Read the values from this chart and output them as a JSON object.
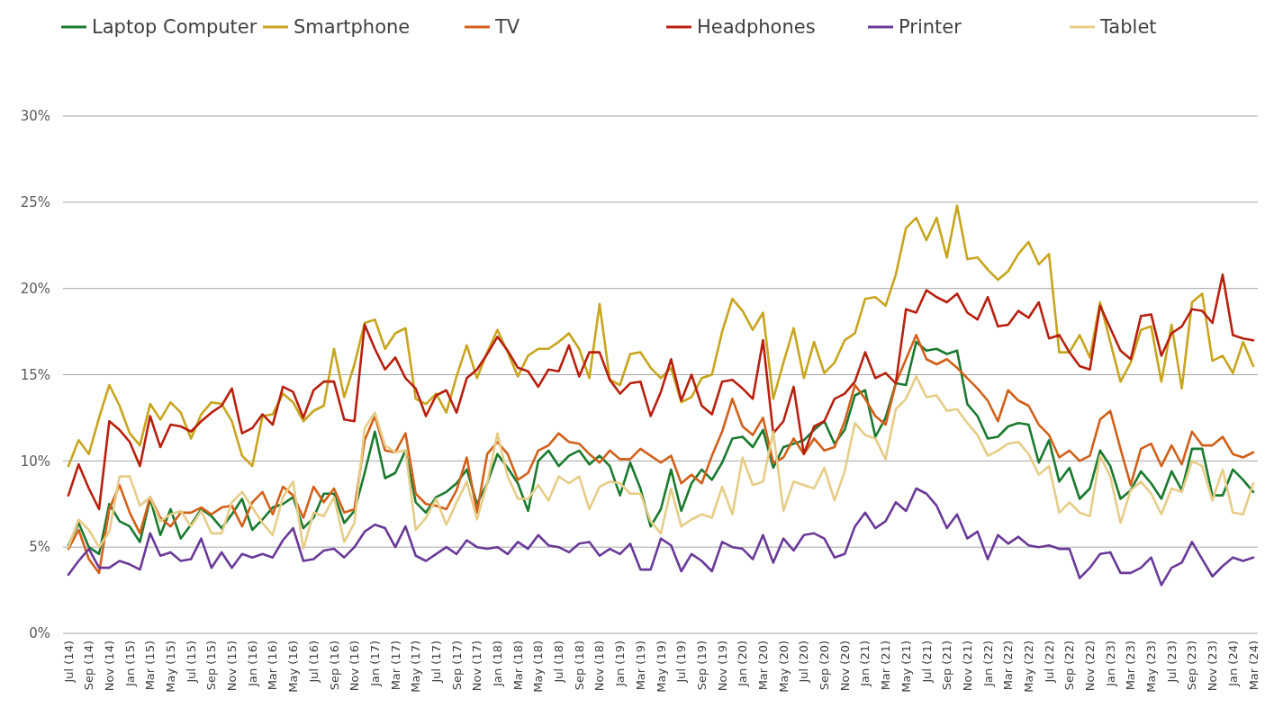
{
  "chart_data": {
    "type": "line",
    "categories": [
      "Jul (14)",
      null,
      "Sep (14)",
      null,
      "Nov (14)",
      null,
      "Jan (15)",
      null,
      "Mar (15)",
      null,
      "May (15)",
      null,
      "Jul (15)",
      null,
      "Sep (15)",
      null,
      "Nov (15)",
      null,
      "Jan (16)",
      null,
      "Mar (16)",
      null,
      "May (16)",
      null,
      "Jul (16)",
      null,
      "Sep (16)",
      null,
      "Nov (16)",
      null,
      "Jan (17)",
      null,
      "Mar (17)",
      null,
      "May (17)",
      null,
      "Jul (17)",
      null,
      "Sep (17)",
      null,
      "Nov (17)",
      null,
      "Jan (18)",
      null,
      "Mar (18)",
      null,
      "May (18)",
      null,
      "Jul (18)",
      null,
      "Sep (18)",
      null,
      "Nov (18)",
      null,
      "Jan (19)",
      null,
      "Mar (19)",
      null,
      "May (19)",
      null,
      "Jul (19)",
      null,
      "Sep (19)",
      null,
      "Nov (19)",
      null,
      "Jan (20)",
      null,
      "Mar (20)",
      null,
      "May (20)",
      null,
      "Jul (20)",
      null,
      "Sep (20)",
      null,
      "Nov (20)",
      null,
      "Jan (21)",
      null,
      "Mar (21)",
      null,
      "May (21)",
      null,
      "Jul (21)",
      null,
      "Sep (21)",
      null,
      "Nov (21)",
      null,
      "Jan (22)",
      null,
      "Mar (22)",
      null,
      "May (22)",
      null,
      "Jul (22)",
      null,
      "Sep (22)",
      null,
      "Nov (22)",
      null,
      "Jan (23)",
      null,
      "Mar (23)",
      null,
      "May (23)",
      null,
      "Jul (23)",
      null,
      "Sep (23)",
      null,
      "Nov (23)",
      null,
      "Jan (24)",
      null,
      "Mar (24)"
    ],
    "ylim": [
      0,
      30
    ],
    "yticks": [
      {
        "value": 0,
        "label": "0%"
      },
      {
        "value": 5,
        "label": "5%"
      },
      {
        "value": 10,
        "label": "10%"
      },
      {
        "value": 15,
        "label": "15%"
      },
      {
        "value": 20,
        "label": "20%"
      },
      {
        "value": 25,
        "label": "25%"
      },
      {
        "value": 30,
        "label": "30%"
      }
    ],
    "grid": "y",
    "legend": "top",
    "line_style": "solid",
    "series": [
      {
        "name": "Laptop Computer",
        "color": "#1a7a2e",
        "values": [
          5.1,
          6.4,
          5.0,
          4.6,
          7.5,
          6.5,
          6.2,
          5.3,
          7.8,
          5.7,
          7.2,
          5.5,
          6.3,
          7.2,
          6.8,
          6.1,
          6.9,
          7.8,
          6.0,
          6.6,
          7.3,
          7.5,
          7.9,
          6.1,
          6.7,
          8.1,
          8.1,
          6.4,
          7.1,
          9.3,
          11.7,
          9.0,
          9.3,
          10.6,
          7.6,
          7.0,
          7.9,
          8.2,
          8.7,
          9.5,
          7.5,
          8.7,
          10.4,
          9.6,
          8.7,
          7.1,
          10.0,
          10.6,
          9.7,
          10.3,
          10.6,
          9.8,
          10.3,
          9.7,
          8.0,
          9.9,
          8.4,
          6.2,
          7.2,
          9.5,
          7.1,
          8.7,
          9.5,
          8.9,
          9.9,
          11.3,
          11.4,
          10.8,
          11.8,
          9.6,
          10.8,
          11.0,
          11.2,
          11.8,
          12.3,
          11.0,
          11.8,
          13.8,
          14.1,
          11.4,
          12.5,
          14.5,
          14.4,
          16.9,
          16.4,
          16.5,
          16.2,
          16.4,
          13.3,
          12.6,
          11.3,
          11.4,
          12.0,
          12.2,
          12.1,
          9.9,
          11.2,
          8.8,
          9.6,
          7.8,
          8.4,
          10.6,
          9.7,
          7.8,
          8.3,
          9.4,
          8.7,
          7.8,
          9.4,
          8.3,
          10.7,
          10.7,
          8.0,
          8.0,
          9.5,
          8.9,
          8.2
        ]
      },
      {
        "name": "Smartphone",
        "color": "#c8a51e",
        "values": [
          9.7,
          11.2,
          10.4,
          12.5,
          14.4,
          13.2,
          11.6,
          10.9,
          13.3,
          12.4,
          13.4,
          12.8,
          11.3,
          12.7,
          13.4,
          13.3,
          12.3,
          10.3,
          9.7,
          12.6,
          12.7,
          13.9,
          13.4,
          12.3,
          12.9,
          13.2,
          16.5,
          13.7,
          15.6,
          18.0,
          18.2,
          16.5,
          17.4,
          17.7,
          13.6,
          13.3,
          13.9,
          12.8,
          14.9,
          16.7,
          14.8,
          16.3,
          17.6,
          16.3,
          14.9,
          16.1,
          16.5,
          16.5,
          16.9,
          17.4,
          16.5,
          14.8,
          19.1,
          14.7,
          14.4,
          16.2,
          16.3,
          15.4,
          14.8,
          15.4,
          13.4,
          13.7,
          14.8,
          15.0,
          17.5,
          19.4,
          18.7,
          17.6,
          18.6,
          13.6,
          15.7,
          17.7,
          14.8,
          16.9,
          15.1,
          15.7,
          17.0,
          17.4,
          19.4,
          19.5,
          19.0,
          20.8,
          23.5,
          24.1,
          22.8,
          24.1,
          21.8,
          24.8,
          21.7,
          21.8,
          21.1,
          20.5,
          21.0,
          22.0,
          22.7,
          21.4,
          22.0,
          16.3,
          16.3,
          17.3,
          16.0,
          19.2,
          16.9,
          14.6,
          15.7,
          17.6,
          17.8,
          14.6,
          17.9,
          14.2,
          19.2,
          19.7,
          15.8,
          16.1,
          15.1,
          16.9,
          15.5
        ]
      },
      {
        "name": "TV",
        "color": "#d2601a",
        "values": [
          4.9,
          6.0,
          4.3,
          3.5,
          7.2,
          8.6,
          7.0,
          5.8,
          7.9,
          6.7,
          6.2,
          7.0,
          7.0,
          7.3,
          6.9,
          7.3,
          7.4,
          6.2,
          7.6,
          8.2,
          6.9,
          8.5,
          8.0,
          6.7,
          8.5,
          7.6,
          8.4,
          7.0,
          7.2,
          11.2,
          12.6,
          10.6,
          10.5,
          11.6,
          8.1,
          7.5,
          7.4,
          7.2,
          8.3,
          10.2,
          7.0,
          10.4,
          11.1,
          10.4,
          8.9,
          9.3,
          10.6,
          10.9,
          11.6,
          11.1,
          11.0,
          10.4,
          9.9,
          10.6,
          10.1,
          10.1,
          10.7,
          10.3,
          9.9,
          10.3,
          8.7,
          9.2,
          8.7,
          10.3,
          11.7,
          13.6,
          12.0,
          11.5,
          12.5,
          9.9,
          10.2,
          11.3,
          10.4,
          11.3,
          10.6,
          10.8,
          12.3,
          14.4,
          13.6,
          12.6,
          12.1,
          14.5,
          15.9,
          17.3,
          15.9,
          15.6,
          15.9,
          15.4,
          14.8,
          14.2,
          13.5,
          12.3,
          14.1,
          13.5,
          13.2,
          12.1,
          11.5,
          10.2,
          10.6,
          10.0,
          10.3,
          12.4,
          12.9,
          10.7,
          8.6,
          10.7,
          11.0,
          9.7,
          10.9,
          9.8,
          11.7,
          10.9,
          10.9,
          11.4,
          10.4,
          10.2,
          10.5
        ]
      },
      {
        "name": "Headphones",
        "color": "#b8200f",
        "values": [
          8.0,
          9.8,
          8.4,
          7.2,
          12.3,
          11.8,
          11.1,
          9.7,
          12.6,
          10.8,
          12.1,
          12.0,
          11.7,
          12.3,
          12.8,
          13.2,
          14.2,
          11.6,
          11.9,
          12.7,
          12.1,
          14.3,
          14.0,
          12.5,
          14.1,
          14.6,
          14.6,
          12.4,
          12.3,
          17.9,
          16.5,
          15.3,
          16.0,
          14.8,
          14.2,
          12.6,
          13.8,
          14.1,
          12.8,
          14.8,
          15.3,
          16.2,
          17.2,
          16.4,
          15.4,
          15.2,
          14.3,
          15.3,
          15.2,
          16.7,
          14.9,
          16.3,
          16.3,
          14.7,
          13.9,
          14.5,
          14.6,
          12.6,
          14.0,
          15.9,
          13.5,
          15.0,
          13.2,
          12.7,
          14.6,
          14.7,
          14.2,
          13.6,
          17.0,
          11.6,
          12.3,
          14.3,
          10.4,
          12.0,
          12.3,
          13.6,
          13.9,
          14.6,
          16.3,
          14.8,
          15.1,
          14.5,
          18.8,
          18.6,
          19.9,
          19.5,
          19.2,
          19.7,
          18.6,
          18.2,
          19.5,
          17.8,
          17.9,
          18.7,
          18.3,
          19.2,
          17.1,
          17.3,
          16.3,
          15.5,
          15.3,
          19.0,
          17.7,
          16.4,
          15.9,
          18.4,
          18.5,
          16.1,
          17.4,
          17.8,
          18.8,
          18.7,
          18.0,
          20.8,
          17.3,
          17.1,
          17.0
        ]
      },
      {
        "name": "Printer",
        "color": "#6a3a98",
        "values": [
          3.4,
          4.2,
          4.9,
          3.8,
          3.8,
          4.2,
          4.0,
          3.7,
          5.8,
          4.5,
          4.7,
          4.2,
          4.3,
          5.5,
          3.8,
          4.7,
          3.8,
          4.6,
          4.4,
          4.6,
          4.4,
          5.4,
          6.1,
          4.2,
          4.3,
          4.8,
          4.9,
          4.4,
          5.0,
          5.9,
          6.3,
          6.1,
          5.0,
          6.2,
          4.5,
          4.2,
          4.6,
          5.0,
          4.6,
          5.4,
          5.0,
          4.9,
          5.0,
          4.6,
          5.3,
          4.9,
          5.7,
          5.1,
          5.0,
          4.7,
          5.2,
          5.3,
          4.5,
          4.9,
          4.6,
          5.2,
          3.7,
          3.7,
          5.5,
          5.1,
          3.6,
          4.6,
          4.2,
          3.6,
          5.3,
          5.0,
          4.9,
          4.3,
          5.7,
          4.1,
          5.5,
          4.8,
          5.7,
          5.8,
          5.5,
          4.4,
          4.6,
          6.2,
          7.0,
          6.1,
          6.5,
          7.6,
          7.1,
          8.4,
          8.1,
          7.4,
          6.1,
          6.9,
          5.5,
          5.9,
          4.3,
          5.7,
          5.2,
          5.6,
          5.1,
          5.0,
          5.1,
          4.9,
          4.9,
          3.2,
          3.8,
          4.6,
          4.7,
          3.5,
          3.5,
          3.8,
          4.4,
          2.8,
          3.8,
          4.1,
          5.3,
          4.3,
          3.3,
          3.9,
          4.4,
          4.2,
          4.4
        ]
      },
      {
        "name": "Tablet",
        "color": "#e6cd87",
        "values": [
          5.0,
          6.6,
          6.0,
          5.0,
          5.9,
          9.1,
          9.1,
          7.4,
          7.9,
          6.5,
          6.9,
          7.1,
          6.2,
          7.1,
          5.8,
          5.8,
          7.6,
          8.2,
          7.3,
          6.4,
          5.7,
          7.9,
          8.8,
          4.9,
          7.0,
          6.8,
          7.9,
          5.3,
          6.4,
          11.9,
          12.8,
          10.9,
          10.5,
          10.6,
          6.0,
          6.7,
          7.8,
          6.3,
          7.6,
          8.8,
          6.6,
          8.7,
          11.6,
          9.1,
          7.8,
          7.8,
          8.6,
          7.7,
          9.1,
          8.7,
          9.1,
          7.2,
          8.5,
          8.8,
          8.7,
          8.1,
          8.1,
          6.5,
          5.8,
          8.4,
          6.2,
          6.6,
          6.9,
          6.7,
          8.5,
          6.9,
          10.2,
          8.6,
          8.8,
          11.7,
          7.1,
          8.8,
          8.6,
          8.4,
          9.6,
          7.7,
          9.4,
          12.2,
          11.5,
          11.3,
          10.1,
          13.0,
          13.6,
          14.9,
          13.7,
          13.8,
          12.9,
          13.0,
          12.2,
          11.5,
          10.3,
          10.6,
          11.0,
          11.1,
          10.4,
          9.2,
          9.7,
          7.0,
          7.6,
          7.0,
          6.8,
          10.3,
          9.1,
          6.4,
          8.3,
          8.8,
          8.1,
          6.9,
          8.4,
          8.2,
          10.0,
          9.7,
          7.7,
          9.5,
          7.0,
          6.9,
          8.7
        ]
      }
    ]
  }
}
